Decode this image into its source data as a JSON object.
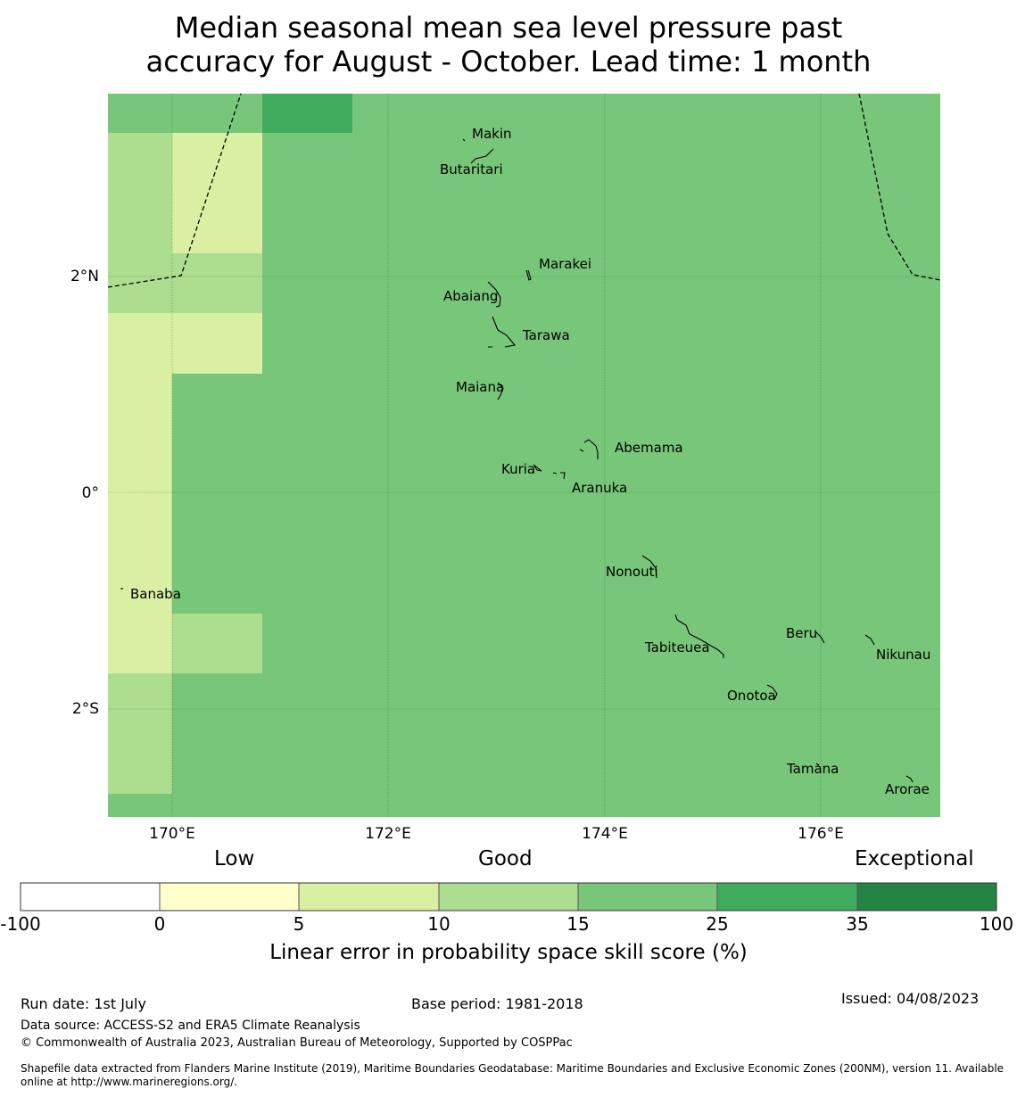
{
  "title_line1": "Median seasonal mean sea level pressure past",
  "title_line2": "accuracy for August - October. Lead time: 1 month",
  "map": {
    "lat_ticks": [
      "2°N",
      "0°",
      "2°S"
    ],
    "lon_ticks": [
      "170°E",
      "172°E",
      "174°E",
      "176°E"
    ],
    "islands": [
      {
        "name": "Makin",
        "lon": 172.9,
        "lat": 3.34
      },
      {
        "name": "Butaritari",
        "lon": 172.77,
        "lat": 3.07
      },
      {
        "name": "Marakei",
        "lon": 173.27,
        "lat": 2.0
      },
      {
        "name": "Abaiang",
        "lon": 172.95,
        "lat": 1.85
      },
      {
        "name": "Tarawa",
        "lon": 173.0,
        "lat": 1.45
      },
      {
        "name": "Maiana",
        "lon": 173.0,
        "lat": 0.93
      },
      {
        "name": "Abemama",
        "lon": 173.86,
        "lat": 0.4
      },
      {
        "name": "Kuria",
        "lon": 173.42,
        "lat": 0.22
      },
      {
        "name": "Aranuka",
        "lon": 173.6,
        "lat": 0.17
      },
      {
        "name": "Nonouti",
        "lon": 174.4,
        "lat": -0.67
      },
      {
        "name": "Banaba",
        "lon": 169.53,
        "lat": -0.87
      },
      {
        "name": "Tabiteuea",
        "lon": 174.85,
        "lat": -1.35
      },
      {
        "name": "Beru",
        "lon": 176.0,
        "lat": -1.33
      },
      {
        "name": "Nikunau",
        "lon": 176.45,
        "lat": -1.35
      },
      {
        "name": "Onotoa",
        "lon": 175.55,
        "lat": -1.8
      },
      {
        "name": "Tamana",
        "lon": 175.98,
        "lat": -2.5
      },
      {
        "name": "Arorae",
        "lon": 176.82,
        "lat": -2.64
      }
    ]
  },
  "colorbar": {
    "categories": [
      {
        "from": -100,
        "to": 0,
        "color": "#ffffff"
      },
      {
        "from": 0,
        "to": 5,
        "color": "#ffffcc"
      },
      {
        "from": 5,
        "to": 10,
        "color": "#d9f0a3"
      },
      {
        "from": 10,
        "to": 15,
        "color": "#addd8e"
      },
      {
        "from": 15,
        "to": 25,
        "color": "#78c679"
      },
      {
        "from": 25,
        "to": 35,
        "color": "#41ab5d"
      },
      {
        "from": 35,
        "to": 100,
        "color": "#238443"
      }
    ],
    "tick_labels": [
      "-100",
      "0",
      "5",
      "10",
      "15",
      "25",
      "35",
      "100"
    ],
    "low_label": "Low",
    "good_label": "Good",
    "exceptional_label": "Exceptional",
    "label": "Linear error in probability space skill score (%)"
  },
  "footer": {
    "run_date": "Run date: 1st July",
    "base_period": "Base period: 1981-2018",
    "issued": "Issued: 04/08/2023",
    "data_source": "Data source: ACCESS-S2 and ERA5 Climate Reanalysis",
    "copyright": "© Commonwealth of Australia 2023, Australian Bureau of Meteorology, Supported by COSPPac",
    "shapefile": "Shapefile data extracted from Flanders Marine Institute (2019), Maritime Boundaries Geodatabase: Maritime Boundaries and Exclusive Economic Zones (200NM), version 11. Available online at http://www.marineregions.org/."
  }
}
